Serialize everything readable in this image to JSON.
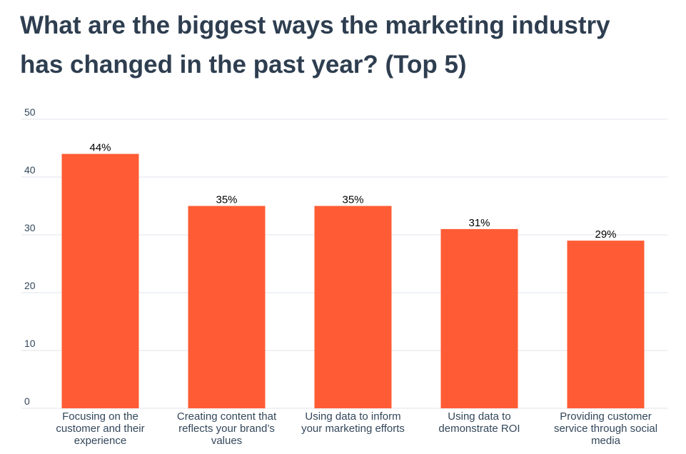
{
  "title_lines": [
    "What are the biggest ways the marketing industry",
    "has changed in the past year? (Top 5)"
  ],
  "colors": {
    "bar": "#ff5c35",
    "grid": "#dfe3eb",
    "title": "#2e3e50",
    "axis_text": "#33475b"
  },
  "chart_data": {
    "type": "bar",
    "title": "What are the biggest ways the marketing industry has changed in the past year? (Top 5)",
    "categories": [
      [
        "Focusing on the",
        "customer and their",
        "experience"
      ],
      [
        "Creating content that",
        "reflects your brand’s",
        "values"
      ],
      [
        "Using data to inform",
        "your marketing efforts"
      ],
      [
        "Using data to",
        "demonstrate ROI"
      ],
      [
        "Providing customer",
        "service through social",
        "media"
      ]
    ],
    "values": [
      44,
      35,
      35,
      31,
      29
    ],
    "data_labels": [
      "44%",
      "35%",
      "35%",
      "31%",
      "29%"
    ],
    "yticks": [
      "0",
      "10",
      "20",
      "30",
      "40",
      "50"
    ],
    "ylim": [
      0,
      50
    ],
    "xlabel": "",
    "ylabel": "",
    "grid": true,
    "legend": "none"
  }
}
